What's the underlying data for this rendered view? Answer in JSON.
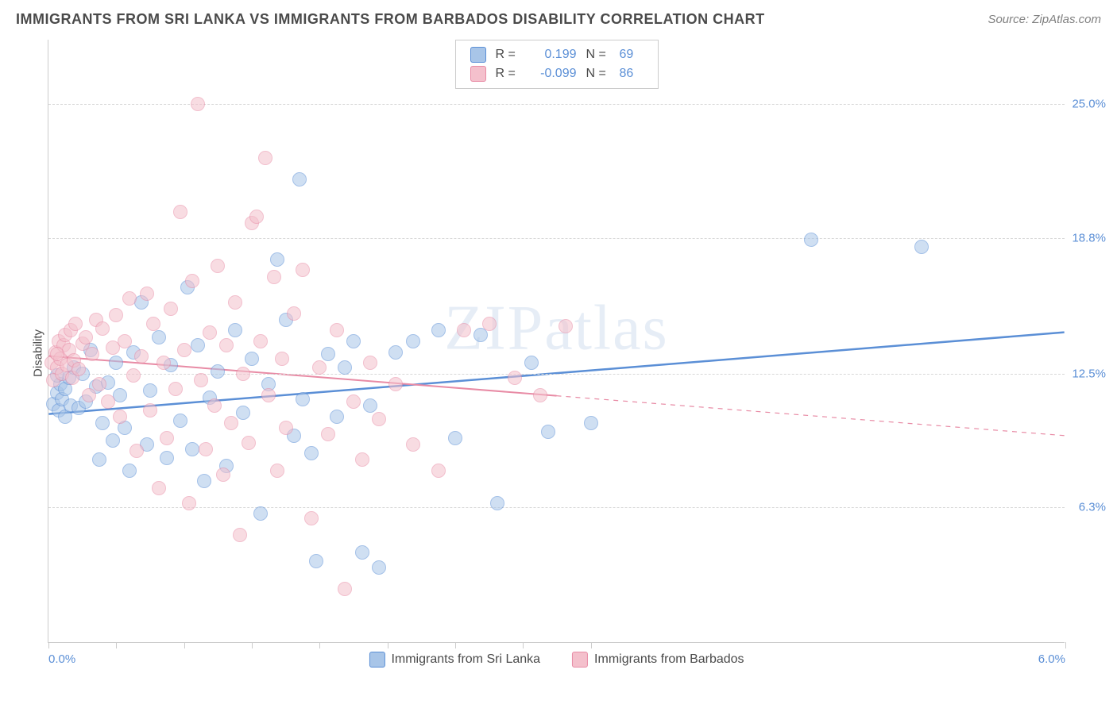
{
  "title": "IMMIGRANTS FROM SRI LANKA VS IMMIGRANTS FROM BARBADOS DISABILITY CORRELATION CHART",
  "source": "Source: ZipAtlas.com",
  "watermark": "ZIPatlas",
  "chart": {
    "type": "scatter",
    "background_color": "#ffffff",
    "grid_color": "#d8d8d8",
    "axis_color": "#cccccc",
    "tick_label_color": "#5b8fd6",
    "y_axis_title": "Disability",
    "y_axis_title_fontsize": 15,
    "tick_fontsize": 15,
    "xlim": [
      0.0,
      6.0
    ],
    "ylim": [
      0.0,
      28.0
    ],
    "xticks": [
      0.0,
      0.4,
      0.8,
      1.2,
      1.6,
      2.0,
      2.4,
      2.8,
      3.2,
      6.0
    ],
    "xtick_labels_shown": {
      "0.0": "0.0%",
      "6.0": "6.0%"
    },
    "yticks": [
      6.3,
      12.5,
      18.8,
      25.0
    ],
    "ytick_labels": [
      "6.3%",
      "12.5%",
      "18.8%",
      "25.0%"
    ],
    "marker_radius": 9,
    "marker_opacity": 0.55,
    "marker_border_width": 1.3,
    "series": [
      {
        "name": "Immigrants from Sri Lanka",
        "color_fill": "#a8c5e8",
        "color_stroke": "#5b8fd6",
        "r_value": "0.199",
        "n_value": "69",
        "trend": {
          "x1": 0.0,
          "y1": 10.6,
          "x2": 6.0,
          "y2": 14.4,
          "solid_until_x": 6.0,
          "width": 2.5
        },
        "points": [
          [
            0.03,
            11.1
          ],
          [
            0.05,
            11.6
          ],
          [
            0.06,
            10.8
          ],
          [
            0.07,
            12.0
          ],
          [
            0.08,
            11.3
          ],
          [
            0.1,
            11.8
          ],
          [
            0.1,
            10.5
          ],
          [
            0.12,
            12.3
          ],
          [
            0.13,
            11.0
          ],
          [
            0.15,
            12.8
          ],
          [
            0.18,
            10.9
          ],
          [
            0.2,
            12.5
          ],
          [
            0.22,
            11.2
          ],
          [
            0.25,
            13.6
          ],
          [
            0.28,
            11.9
          ],
          [
            0.3,
            8.5
          ],
          [
            0.32,
            10.2
          ],
          [
            0.35,
            12.1
          ],
          [
            0.38,
            9.4
          ],
          [
            0.4,
            13.0
          ],
          [
            0.42,
            11.5
          ],
          [
            0.45,
            10.0
          ],
          [
            0.48,
            8.0
          ],
          [
            0.5,
            13.5
          ],
          [
            0.55,
            15.8
          ],
          [
            0.58,
            9.2
          ],
          [
            0.6,
            11.7
          ],
          [
            0.65,
            14.2
          ],
          [
            0.7,
            8.6
          ],
          [
            0.72,
            12.9
          ],
          [
            0.78,
            10.3
          ],
          [
            0.82,
            16.5
          ],
          [
            0.85,
            9.0
          ],
          [
            0.88,
            13.8
          ],
          [
            0.92,
            7.5
          ],
          [
            0.95,
            11.4
          ],
          [
            1.0,
            12.6
          ],
          [
            1.05,
            8.2
          ],
          [
            1.1,
            14.5
          ],
          [
            1.15,
            10.7
          ],
          [
            1.2,
            13.2
          ],
          [
            1.25,
            6.0
          ],
          [
            1.3,
            12.0
          ],
          [
            1.35,
            17.8
          ],
          [
            1.4,
            15.0
          ],
          [
            1.45,
            9.6
          ],
          [
            1.48,
            21.5
          ],
          [
            1.5,
            11.3
          ],
          [
            1.55,
            8.8
          ],
          [
            1.58,
            3.8
          ],
          [
            1.65,
            13.4
          ],
          [
            1.7,
            10.5
          ],
          [
            1.75,
            12.8
          ],
          [
            1.8,
            14.0
          ],
          [
            1.85,
            4.2
          ],
          [
            1.9,
            11.0
          ],
          [
            1.95,
            3.5
          ],
          [
            2.05,
            13.5
          ],
          [
            2.15,
            14.0
          ],
          [
            2.3,
            14.5
          ],
          [
            2.4,
            9.5
          ],
          [
            2.55,
            14.3
          ],
          [
            2.65,
            6.5
          ],
          [
            2.85,
            13.0
          ],
          [
            2.95,
            9.8
          ],
          [
            3.2,
            10.2
          ],
          [
            4.5,
            18.7
          ],
          [
            5.15,
            18.4
          ],
          [
            0.05,
            12.4
          ]
        ]
      },
      {
        "name": "Immigrants from Barbados",
        "color_fill": "#f4c0cc",
        "color_stroke": "#e88ba5",
        "r_value": "-0.099",
        "n_value": "86",
        "trend": {
          "x1": 0.0,
          "y1": 13.3,
          "x2": 6.0,
          "y2": 9.6,
          "solid_until_x": 3.0,
          "width": 2
        },
        "points": [
          [
            0.02,
            13.0
          ],
          [
            0.03,
            12.2
          ],
          [
            0.04,
            13.5
          ],
          [
            0.05,
            12.8
          ],
          [
            0.06,
            14.0
          ],
          [
            0.07,
            13.2
          ],
          [
            0.08,
            12.5
          ],
          [
            0.09,
            13.8
          ],
          [
            0.1,
            14.3
          ],
          [
            0.11,
            12.9
          ],
          [
            0.12,
            13.6
          ],
          [
            0.13,
            14.5
          ],
          [
            0.14,
            12.3
          ],
          [
            0.15,
            13.1
          ],
          [
            0.16,
            14.8
          ],
          [
            0.18,
            12.7
          ],
          [
            0.2,
            13.9
          ],
          [
            0.22,
            14.2
          ],
          [
            0.24,
            11.5
          ],
          [
            0.26,
            13.4
          ],
          [
            0.28,
            15.0
          ],
          [
            0.3,
            12.0
          ],
          [
            0.32,
            14.6
          ],
          [
            0.35,
            11.2
          ],
          [
            0.38,
            13.7
          ],
          [
            0.4,
            15.2
          ],
          [
            0.42,
            10.5
          ],
          [
            0.45,
            14.0
          ],
          [
            0.48,
            16.0
          ],
          [
            0.5,
            12.4
          ],
          [
            0.52,
            8.9
          ],
          [
            0.55,
            13.3
          ],
          [
            0.58,
            16.2
          ],
          [
            0.6,
            10.8
          ],
          [
            0.62,
            14.8
          ],
          [
            0.65,
            7.2
          ],
          [
            0.68,
            13.0
          ],
          [
            0.7,
            9.5
          ],
          [
            0.72,
            15.5
          ],
          [
            0.75,
            11.8
          ],
          [
            0.78,
            20.0
          ],
          [
            0.8,
            13.6
          ],
          [
            0.83,
            6.5
          ],
          [
            0.85,
            16.8
          ],
          [
            0.88,
            25.0
          ],
          [
            0.9,
            12.2
          ],
          [
            0.93,
            9.0
          ],
          [
            0.95,
            14.4
          ],
          [
            0.98,
            11.0
          ],
          [
            1.0,
            17.5
          ],
          [
            1.03,
            7.8
          ],
          [
            1.05,
            13.8
          ],
          [
            1.08,
            10.2
          ],
          [
            1.1,
            15.8
          ],
          [
            1.13,
            5.0
          ],
          [
            1.15,
            12.5
          ],
          [
            1.18,
            9.3
          ],
          [
            1.2,
            19.5
          ],
          [
            1.23,
            19.8
          ],
          [
            1.25,
            14.0
          ],
          [
            1.28,
            22.5
          ],
          [
            1.3,
            11.5
          ],
          [
            1.33,
            17.0
          ],
          [
            1.35,
            8.0
          ],
          [
            1.38,
            13.2
          ],
          [
            1.4,
            10.0
          ],
          [
            1.45,
            15.3
          ],
          [
            1.5,
            17.3
          ],
          [
            1.55,
            5.8
          ],
          [
            1.6,
            12.8
          ],
          [
            1.65,
            9.7
          ],
          [
            1.7,
            14.5
          ],
          [
            1.75,
            2.5
          ],
          [
            1.8,
            11.2
          ],
          [
            1.85,
            8.5
          ],
          [
            1.9,
            13.0
          ],
          [
            1.95,
            10.4
          ],
          [
            2.05,
            12.0
          ],
          [
            2.15,
            9.2
          ],
          [
            2.3,
            8.0
          ],
          [
            2.45,
            14.5
          ],
          [
            2.6,
            14.8
          ],
          [
            2.75,
            12.3
          ],
          [
            2.9,
            11.5
          ],
          [
            3.05,
            14.7
          ],
          [
            0.05,
            13.4
          ]
        ]
      }
    ],
    "legend": {
      "stats_labels": {
        "r": "R =",
        "n": "N ="
      },
      "position": "top-center-inside"
    }
  }
}
